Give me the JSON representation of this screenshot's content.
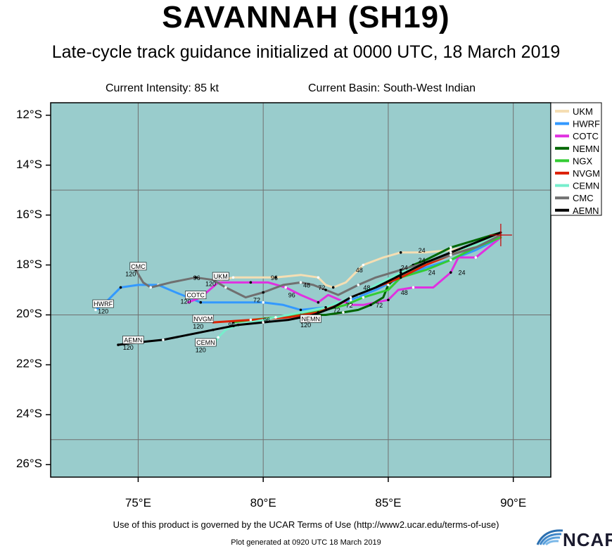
{
  "title": "SAVANNAH (SH19)",
  "subtitle": "Late-cycle track guidance initialized at 0000 UTC, 18 March 2019",
  "current_intensity": "Current Intensity: 85 kt",
  "current_basin": "Current Basin: South-West Indian",
  "footer_terms": "Use of this product is governed by the UCAR Terms of Use (http://www2.ucar.edu/terms-of-use)",
  "footer_generated": "Plot generated at 0920 UTC  18 March 2019",
  "logo_text": "NCAR",
  "colors": {
    "ocean": "#99cccc",
    "grid": "#707070"
  },
  "axes": {
    "y_labels": [
      "12°S",
      "14°S",
      "16°S",
      "18°S",
      "20°S",
      "22°S",
      "24°S",
      "26°S"
    ],
    "x_labels": [
      "75°E",
      "80°E",
      "85°E",
      "90°E"
    ],
    "lon_range": [
      71.5,
      91.5
    ],
    "lat_range": [
      -26.5,
      -11.5
    ]
  },
  "storm_position": {
    "lon": 89.5,
    "lat": -16.8
  },
  "models": [
    {
      "name": "UKM",
      "color": "#f5deb3",
      "track": [
        [
          89.5,
          -16.8
        ],
        [
          88.5,
          -17.2
        ],
        [
          87.5,
          -17.4
        ],
        [
          86.5,
          -17.5
        ],
        [
          85.5,
          -17.5
        ],
        [
          84.8,
          -17.7
        ],
        [
          84.0,
          -18.0
        ],
        [
          83.3,
          -18.7
        ],
        [
          82.8,
          -18.9
        ],
        [
          82.5,
          -18.8
        ],
        [
          82.2,
          -18.5
        ],
        [
          81.5,
          -18.4
        ],
        [
          80.5,
          -18.5
        ],
        [
          79.5,
          -18.5
        ],
        [
          78.8,
          -18.5
        ],
        [
          78.3,
          -18.6
        ]
      ],
      "labels": [
        {
          "text": "24",
          "lon": 86.2,
          "lat": -17.5
        },
        {
          "text": "48",
          "lon": 83.7,
          "lat": -18.3
        },
        {
          "text": "72",
          "lon": 82.2,
          "lat": -19.0
        },
        {
          "text": "96",
          "lon": 80.3,
          "lat": -18.6
        }
      ],
      "box": {
        "text": "UKM",
        "lon": 78.3,
        "lat": -18.55
      },
      "end": {
        "text": "120",
        "lon": 77.9,
        "lat": -18.85
      }
    },
    {
      "name": "HWRF",
      "color": "#3399ff",
      "track": [
        [
          89.5,
          -16.9
        ],
        [
          88.5,
          -17.4
        ],
        [
          87.5,
          -17.8
        ],
        [
          86.5,
          -18.1
        ],
        [
          85.5,
          -18.5
        ],
        [
          84.5,
          -19.0
        ],
        [
          83.5,
          -19.4
        ],
        [
          82.5,
          -19.7
        ],
        [
          81.5,
          -19.8
        ],
        [
          80.8,
          -19.6
        ],
        [
          80.0,
          -19.5
        ],
        [
          78.5,
          -19.5
        ],
        [
          77.5,
          -19.5
        ],
        [
          76.5,
          -19.1
        ],
        [
          75.8,
          -18.8
        ],
        [
          75.0,
          -18.8
        ],
        [
          74.3,
          -18.9
        ],
        [
          73.7,
          -19.5
        ],
        [
          73.3,
          -19.8
        ]
      ],
      "labels": [],
      "box": {
        "text": "HWRF",
        "lon": 73.6,
        "lat": -19.65
      },
      "end": {
        "text": "120",
        "lon": 73.6,
        "lat": -19.95
      }
    },
    {
      "name": "COTC",
      "color": "#e030e0",
      "track": [
        [
          89.5,
          -16.9
        ],
        [
          89.0,
          -17.3
        ],
        [
          88.5,
          -17.7
        ],
        [
          87.8,
          -17.7
        ],
        [
          87.5,
          -18.3
        ],
        [
          86.8,
          -18.9
        ],
        [
          86.0,
          -18.9
        ],
        [
          85.4,
          -19.0
        ],
        [
          85.0,
          -19.4
        ],
        [
          84.0,
          -19.6
        ],
        [
          83.5,
          -19.6
        ],
        [
          82.6,
          -19.2
        ],
        [
          82.2,
          -19.5
        ],
        [
          81.5,
          -19.2
        ],
        [
          80.9,
          -18.9
        ],
        [
          80.2,
          -18.7
        ],
        [
          79.5,
          -18.7
        ],
        [
          78.2,
          -18.7
        ],
        [
          77.5,
          -19.3
        ],
        [
          77.0,
          -19.5
        ]
      ],
      "labels": [
        {
          "text": "24",
          "lon": 87.8,
          "lat": -18.4
        },
        {
          "text": "48",
          "lon": 85.5,
          "lat": -19.2
        },
        {
          "text": "72",
          "lon": 84.5,
          "lat": -19.7
        },
        {
          "text": "96",
          "lon": 81.0,
          "lat": -19.3
        }
      ],
      "box": {
        "text": "COTC",
        "lon": 77.3,
        "lat": -19.3
      },
      "end": {
        "text": "120",
        "lon": 76.9,
        "lat": -19.55
      }
    },
    {
      "name": "NEMN",
      "color": "#006600",
      "track": [
        [
          89.5,
          -16.7
        ],
        [
          88.5,
          -17.0
        ],
        [
          87.5,
          -17.3
        ],
        [
          86.5,
          -17.8
        ],
        [
          86.0,
          -18.0
        ],
        [
          85.5,
          -18.3
        ],
        [
          85.0,
          -18.8
        ],
        [
          84.8,
          -19.3
        ],
        [
          84.3,
          -19.6
        ],
        [
          83.8,
          -19.8
        ],
        [
          83.2,
          -19.9
        ],
        [
          82.5,
          -20.0
        ],
        [
          81.5,
          -20.0
        ],
        [
          80.5,
          -20.1
        ],
        [
          80.0,
          -20.2
        ]
      ],
      "labels": [
        {
          "text": "24",
          "lon": 86.2,
          "lat": -17.9
        },
        {
          "text": "72",
          "lon": 83.3,
          "lat": -19.7
        }
      ],
      "box": {
        "text": "NEMN",
        "lon": 81.9,
        "lat": -20.25
      },
      "end": {
        "text": "120",
        "lon": 81.7,
        "lat": -20.5
      }
    },
    {
      "name": "NGX",
      "color": "#33cc33",
      "track": [
        [
          89.5,
          -16.9
        ],
        [
          88.5,
          -17.3
        ],
        [
          87.5,
          -17.8
        ],
        [
          86.5,
          -18.2
        ],
        [
          85.5,
          -18.5
        ],
        [
          85.0,
          -19.0
        ],
        [
          84.0,
          -19.3
        ],
        [
          83.3,
          -19.6
        ],
        [
          82.5,
          -19.8
        ],
        [
          81.5,
          -20.0
        ],
        [
          80.5,
          -20.1
        ],
        [
          79.5,
          -20.2
        ],
        [
          78.8,
          -20.3
        ]
      ],
      "labels": [
        {
          "text": "24",
          "lon": 86.6,
          "lat": -18.4
        },
        {
          "text": "48",
          "lon": 84.0,
          "lat": -19.0
        },
        {
          "text": "72",
          "lon": 82.8,
          "lat": -19.9
        },
        {
          "text": "96",
          "lon": 80.0,
          "lat": -20.3
        }
      ],
      "box": null,
      "end": null
    },
    {
      "name": "NVGM",
      "color": "#dd2200",
      "track": [
        [
          89.5,
          -16.8
        ],
        [
          88.5,
          -17.2
        ],
        [
          87.5,
          -17.6
        ],
        [
          86.5,
          -18.0
        ],
        [
          85.5,
          -18.5
        ],
        [
          84.5,
          -18.9
        ],
        [
          83.5,
          -19.3
        ],
        [
          83.0,
          -19.6
        ],
        [
          82.2,
          -19.9
        ],
        [
          81.0,
          -20.1
        ],
        [
          79.5,
          -20.2
        ],
        [
          78.0,
          -20.3
        ]
      ],
      "labels": [],
      "box": {
        "text": "NVGM",
        "lon": 77.6,
        "lat": -20.25
      },
      "end": {
        "text": "120",
        "lon": 77.4,
        "lat": -20.55
      }
    },
    {
      "name": "CEMN",
      "color": "#77eecc",
      "track": [
        [
          89.5,
          -16.8
        ],
        [
          88.5,
          -17.2
        ],
        [
          87.5,
          -17.5
        ],
        [
          86.5,
          -17.9
        ],
        [
          85.5,
          -18.3
        ],
        [
          84.5,
          -18.8
        ],
        [
          83.8,
          -19.2
        ],
        [
          83.0,
          -19.5
        ],
        [
          82.5,
          -19.7
        ],
        [
          81.5,
          -19.9
        ],
        [
          80.5,
          -20.1
        ],
        [
          79.5,
          -20.3
        ],
        [
          79.0,
          -20.4
        ],
        [
          78.5,
          -20.6
        ],
        [
          78.2,
          -20.9
        ],
        [
          78.0,
          -21.2
        ]
      ],
      "labels": [
        {
          "text": "24",
          "lon": 85.5,
          "lat": -18.2
        }
      ],
      "box": {
        "text": "CEMN",
        "lon": 77.7,
        "lat": -21.2
      },
      "end": {
        "text": "120",
        "lon": 77.5,
        "lat": -21.5
      }
    },
    {
      "name": "CMC",
      "color": "#707070",
      "track": [
        [
          89.5,
          -16.8
        ],
        [
          88.5,
          -17.3
        ],
        [
          87.5,
          -17.6
        ],
        [
          86.5,
          -17.9
        ],
        [
          85.5,
          -18.2
        ],
        [
          84.5,
          -18.5
        ],
        [
          83.8,
          -18.8
        ],
        [
          83.0,
          -19.2
        ],
        [
          82.5,
          -19.0
        ],
        [
          82.0,
          -18.8
        ],
        [
          81.5,
          -18.7
        ],
        [
          80.8,
          -18.8
        ],
        [
          80.0,
          -19.1
        ],
        [
          79.3,
          -19.3
        ],
        [
          78.5,
          -18.9
        ],
        [
          78.0,
          -18.6
        ],
        [
          77.3,
          -18.5
        ],
        [
          76.3,
          -18.7
        ],
        [
          75.5,
          -18.9
        ],
        [
          75.2,
          -18.7
        ],
        [
          74.9,
          -18.2
        ]
      ],
      "labels": [
        {
          "text": "48",
          "lon": 81.6,
          "lat": -18.9
        },
        {
          "text": "72",
          "lon": 79.6,
          "lat": -19.5
        },
        {
          "text": "96",
          "lon": 77.2,
          "lat": -18.6
        }
      ],
      "box": {
        "text": "CMC",
        "lon": 75.0,
        "lat": -18.15
      },
      "end": {
        "text": "120",
        "lon": 74.7,
        "lat": -18.45
      }
    },
    {
      "name": "AEMN",
      "color": "#000000",
      "track": [
        [
          89.5,
          -16.7
        ],
        [
          88.5,
          -17.1
        ],
        [
          87.5,
          -17.5
        ],
        [
          86.5,
          -17.9
        ],
        [
          85.5,
          -18.4
        ],
        [
          84.5,
          -18.9
        ],
        [
          83.5,
          -19.3
        ],
        [
          82.8,
          -19.7
        ],
        [
          82.0,
          -20.0
        ],
        [
          81.0,
          -20.2
        ],
        [
          80.0,
          -20.3
        ],
        [
          79.0,
          -20.4
        ],
        [
          78.0,
          -20.6
        ],
        [
          77.0,
          -20.8
        ],
        [
          76.0,
          -21.0
        ],
        [
          75.0,
          -21.1
        ],
        [
          74.2,
          -21.2
        ]
      ],
      "labels": [
        {
          "text": "96",
          "lon": 78.6,
          "lat": -20.5
        }
      ],
      "box": {
        "text": "AEMN",
        "lon": 74.8,
        "lat": -21.1
      },
      "end": {
        "text": "120",
        "lon": 74.6,
        "lat": -21.4
      }
    }
  ]
}
